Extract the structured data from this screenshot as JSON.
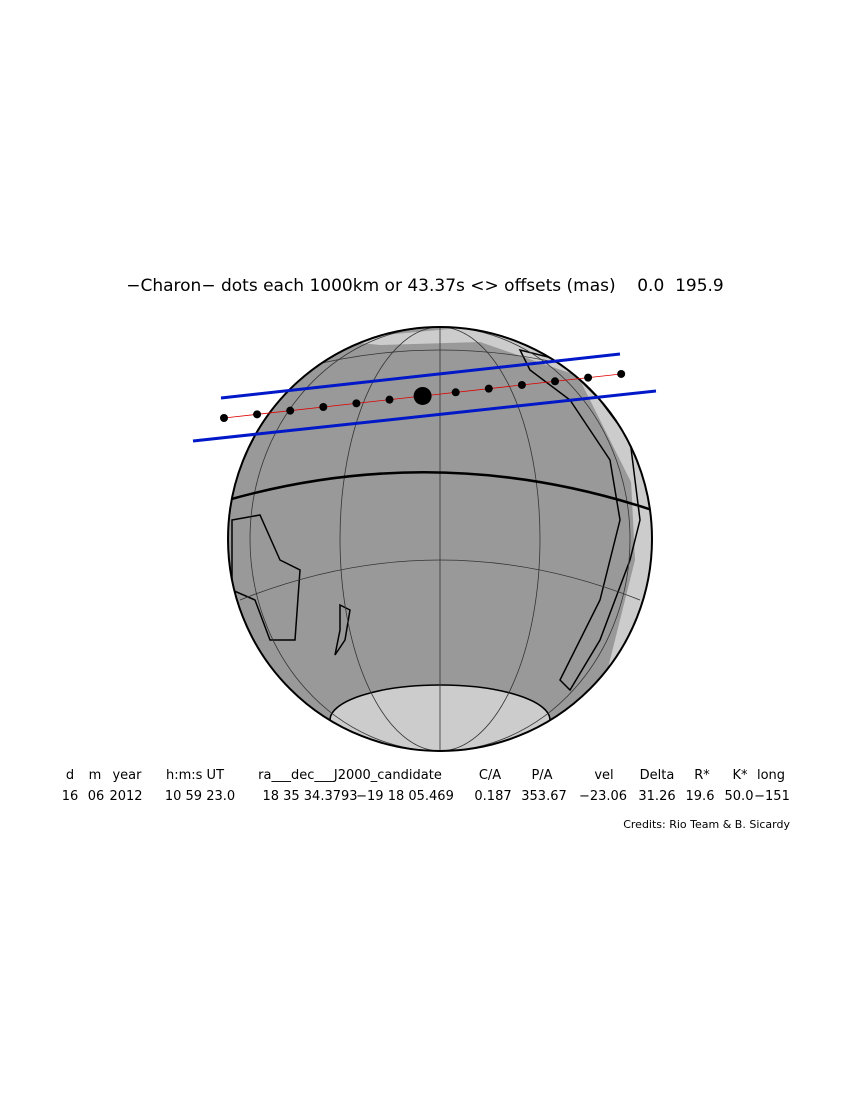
{
  "title": "−Charon− dots each 1000km or 43.37s <> offsets (mas)    0.0  195.9",
  "table": {
    "header": [
      "d",
      "m",
      "year",
      "h:m:s UT",
      "ra___dec___J2000_candidate",
      "C/A",
      "P/A",
      "vel",
      "Delta",
      "R*",
      "K*",
      "long"
    ],
    "row": [
      "16",
      "06",
      "2012",
      "10 59 23.0",
      "18 35 34.3793",
      "−19 18 05.469",
      "0.187",
      "353.67",
      "−23.06",
      "31.26",
      "19.6",
      "50.0",
      "−151"
    ]
  },
  "credits": "Credits: Rio Team & B. Sicardy"
}
